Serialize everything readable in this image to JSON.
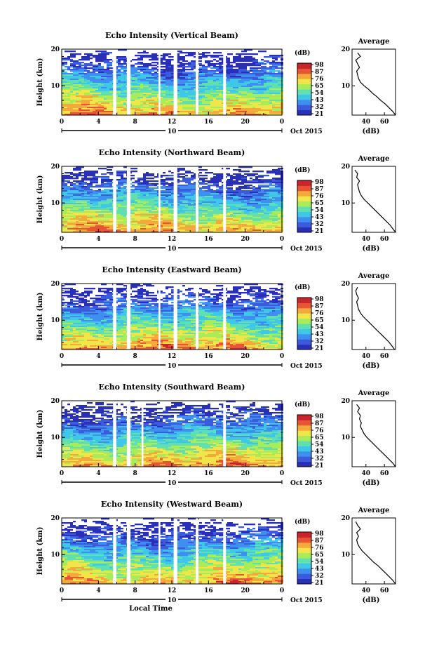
{
  "colors": {
    "colormap": [
      "#2a2fb8",
      "#3b5bdc",
      "#3f8ff0",
      "#3fc7e8",
      "#60e0b0",
      "#a8ec5a",
      "#f0e64a",
      "#f5a93c",
      "#e85535",
      "#c8252e"
    ],
    "gap": "#ffffff",
    "line": "#000000"
  },
  "shared": {
    "height_label": "Height (km)",
    "avg_title": "Average",
    "avg_unit": "(dB)",
    "cb_unit": "(dB)",
    "x_ticks": [
      "0",
      "4",
      "8",
      "12",
      "16",
      "20",
      "0"
    ],
    "y_ticks": [
      "20",
      "10"
    ],
    "avg_x_ticks": [
      "40",
      "60"
    ],
    "date_day": "10",
    "month_label": "Oct 2015",
    "xlabel": "Local Time"
  },
  "chart_data": [
    {
      "type": "heatmap",
      "title": "Echo Intensity (Vertical Beam)",
      "ylabel": "Height (km)",
      "xlabel": "",
      "xlim": [
        0,
        24
      ],
      "ylim": [
        2,
        20
      ],
      "colorbar_ticks": [
        "98",
        "87",
        "76",
        "65",
        "54",
        "43",
        "32",
        "21"
      ],
      "data_gaps_hours": [
        [
          5.6,
          5.95
        ],
        [
          7.1,
          7.5
        ],
        [
          10.55,
          10.75
        ],
        [
          12.2,
          12.6
        ],
        [
          14.6,
          14.9
        ],
        [
          17.6,
          17.9
        ]
      ],
      "average_profile": {
        "x_ticks": [
          "40",
          "60"
        ],
        "height_km": [
          2,
          3,
          4,
          5,
          6,
          7,
          8,
          9,
          10,
          11,
          12,
          13,
          14,
          15,
          16,
          17,
          18,
          19
        ],
        "db": [
          72,
          69,
          65,
          61,
          56,
          52,
          47,
          43,
          38,
          34,
          32,
          31,
          30,
          33,
          31,
          29,
          34,
          31
        ]
      }
    },
    {
      "type": "heatmap",
      "title": "Echo Intensity (Northward Beam)",
      "ylabel": "Height (km)",
      "xlabel": "",
      "xlim": [
        0,
        24
      ],
      "ylim": [
        2,
        20
      ],
      "colorbar_ticks": [
        "98",
        "87",
        "76",
        "65",
        "54",
        "43",
        "32",
        "21"
      ],
      "data_gaps_hours": [
        [
          5.6,
          5.95
        ],
        [
          7.1,
          7.5
        ],
        [
          10.55,
          10.75
        ],
        [
          12.2,
          12.6
        ],
        [
          14.6,
          14.9
        ],
        [
          17.6,
          17.9
        ]
      ],
      "average_profile": {
        "x_ticks": [
          "40",
          "60"
        ],
        "height_km": [
          2,
          3,
          4,
          5,
          6,
          7,
          8,
          9,
          10,
          11,
          12,
          13,
          14,
          15,
          16,
          17,
          18,
          19
        ],
        "db": [
          72,
          69,
          66,
          62,
          58,
          54,
          50,
          46,
          42,
          38,
          35,
          33,
          32,
          31,
          33,
          30,
          31,
          28
        ]
      }
    },
    {
      "type": "heatmap",
      "title": "Echo Intensity (Eastward Beam)",
      "ylabel": "Height (km)",
      "xlabel": "",
      "xlim": [
        0,
        24
      ],
      "ylim": [
        2,
        20
      ],
      "colorbar_ticks": [
        "98",
        "87",
        "76",
        "65",
        "54",
        "43",
        "32",
        "21"
      ],
      "data_gaps_hours": [
        [
          5.6,
          5.95
        ],
        [
          7.1,
          7.5
        ],
        [
          10.55,
          10.75
        ],
        [
          12.2,
          12.6
        ],
        [
          14.6,
          14.9
        ],
        [
          17.6,
          17.9
        ]
      ],
      "average_profile": {
        "x_ticks": [
          "40",
          "60"
        ],
        "height_km": [
          2,
          3,
          4,
          5,
          6,
          7,
          8,
          9,
          10,
          11,
          12,
          13,
          14,
          15,
          16,
          17,
          18,
          19
        ],
        "db": [
          71,
          68,
          65,
          61,
          57,
          53,
          49,
          45,
          41,
          37,
          34,
          32,
          31,
          30,
          32,
          30,
          29,
          31
        ]
      }
    },
    {
      "type": "heatmap",
      "title": "Echo Intensity (Southward Beam)",
      "ylabel": "Height (km)",
      "xlabel": "",
      "xlim": [
        0,
        24
      ],
      "ylim": [
        2,
        20
      ],
      "colorbar_ticks": [
        "98",
        "87",
        "76",
        "65",
        "54",
        "43",
        "32",
        "21"
      ],
      "data_gaps_hours": [
        [
          5.6,
          5.95
        ],
        [
          7.1,
          7.5
        ],
        [
          8.7,
          8.9
        ],
        [
          17.6,
          17.9
        ]
      ],
      "average_profile": {
        "x_ticks": [
          "40",
          "60"
        ],
        "height_km": [
          2,
          3,
          4,
          5,
          6,
          7,
          8,
          9,
          10,
          11,
          12,
          13,
          14,
          15,
          16,
          17,
          18,
          19
        ],
        "db": [
          72,
          69,
          65,
          61,
          57,
          53,
          49,
          45,
          41,
          38,
          36,
          34,
          35,
          33,
          34,
          31,
          33,
          30
        ]
      }
    },
    {
      "type": "heatmap",
      "title": "Echo Intensity (Westward Beam)",
      "ylabel": "Height (km)",
      "xlabel": "Local Time",
      "xlim": [
        0,
        24
      ],
      "ylim": [
        2,
        20
      ],
      "colorbar_ticks": [
        "98",
        "87",
        "76",
        "65",
        "54",
        "43",
        "32",
        "21"
      ],
      "data_gaps_hours": [
        [
          5.6,
          5.95
        ],
        [
          7.1,
          7.5
        ],
        [
          10.55,
          10.75
        ],
        [
          12.2,
          12.6
        ],
        [
          14.6,
          14.9
        ],
        [
          17.6,
          17.9
        ]
      ],
      "average_profile": {
        "x_ticks": [
          "40",
          "60"
        ],
        "height_km": [
          2,
          3,
          4,
          5,
          6,
          7,
          8,
          9,
          10,
          11,
          12,
          13,
          14,
          15,
          16,
          17,
          18,
          19
        ],
        "db": [
          72,
          69,
          65,
          61,
          57,
          53,
          48,
          44,
          40,
          36,
          33,
          31,
          30,
          32,
          30,
          34,
          31,
          29
        ]
      }
    }
  ]
}
